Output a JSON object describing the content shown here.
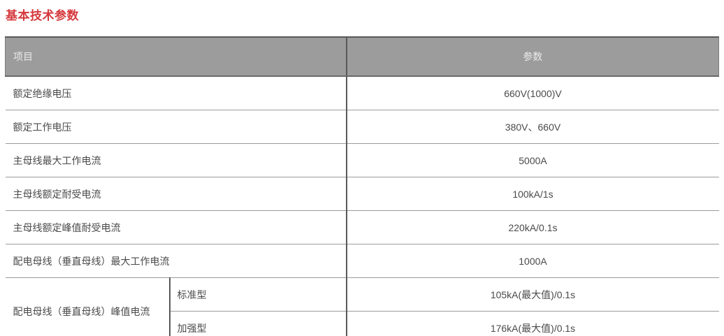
{
  "page": {
    "title": "基本技术参数"
  },
  "table": {
    "headers": {
      "item": "项目",
      "param": "参数"
    },
    "rows": [
      {
        "label": "额定绝缘电压",
        "value": "660V(1000)V"
      },
      {
        "label": "额定工作电压",
        "value": "380V、660V"
      },
      {
        "label": "主母线最大工作电流",
        "value": "5000A"
      },
      {
        "label": "主母线额定耐受电流",
        "value": "100kA/1s"
      },
      {
        "label": "主母线额定峰值耐受电流",
        "value": "220kA/0.1s"
      },
      {
        "label": "配电母线（垂直母线）最大工作电流",
        "value": "1000A"
      }
    ],
    "group": {
      "label": "配电母线（垂直母线）峰值电流",
      "subrows": [
        {
          "type": "标准型",
          "value": "105kA(最大值)/0.1s"
        },
        {
          "type": "加强型",
          "value": "176kA(最大值)/0.1s"
        }
      ]
    }
  },
  "colors": {
    "title_color": "#d5383c",
    "header_bg": "#9c9c9c",
    "header_fg": "#ebebeb",
    "body_fg": "#4a4a4a",
    "border_dark": "#59595b",
    "border_mid": "#69696b",
    "border_light": "#9b9b9b"
  }
}
